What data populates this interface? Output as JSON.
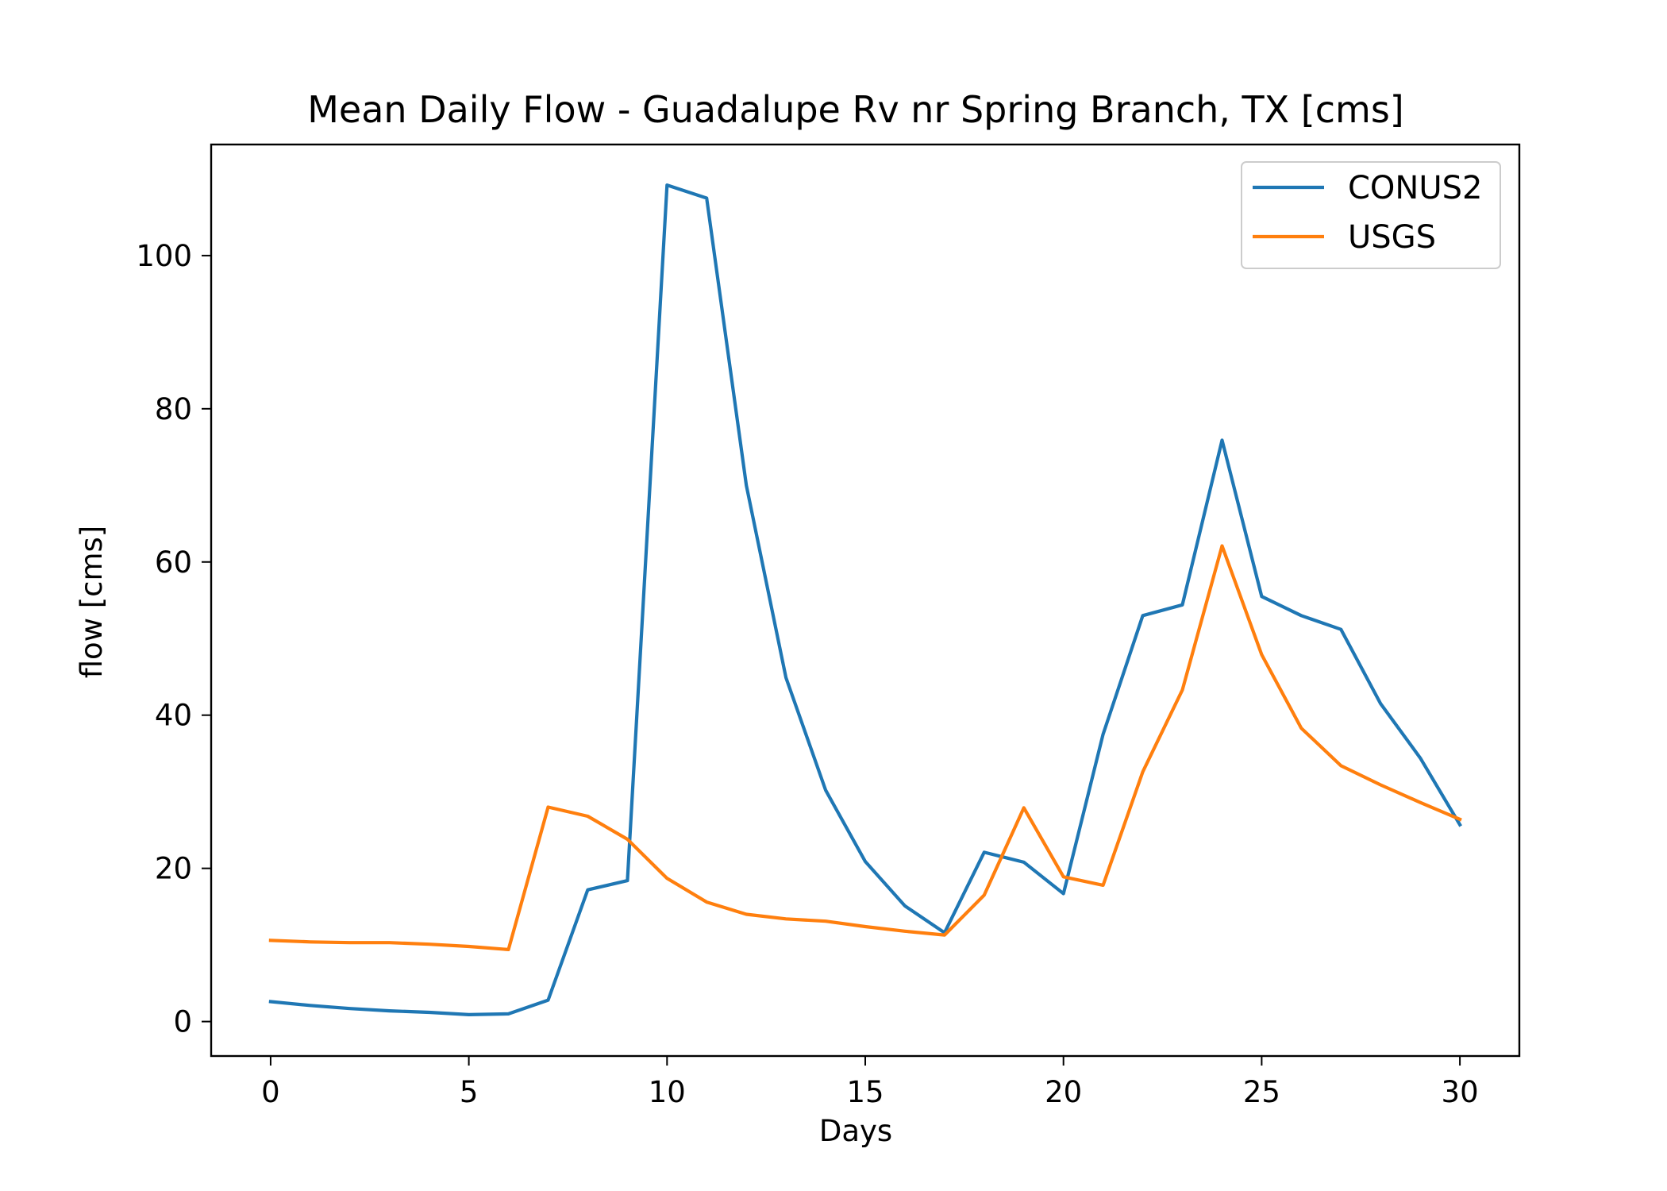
{
  "chart_data": {
    "type": "line",
    "title": "Mean Daily Flow - Guadalupe Rv nr Spring Branch, TX [cms]",
    "xlabel": "Days",
    "ylabel": "flow [cms]",
    "xlim": [
      -1.5,
      31.5
    ],
    "ylim": [
      -4.5,
      114.5
    ],
    "xticks": [
      0,
      5,
      10,
      15,
      20,
      25,
      30
    ],
    "yticks": [
      0,
      20,
      40,
      60,
      80,
      100
    ],
    "grid": false,
    "legend_position": "upper right",
    "x": [
      0,
      1,
      2,
      3,
      4,
      5,
      6,
      7,
      8,
      9,
      10,
      11,
      12,
      13,
      14,
      15,
      16,
      17,
      18,
      19,
      20,
      21,
      22,
      23,
      24,
      25,
      26,
      27,
      28,
      29,
      30
    ],
    "series": [
      {
        "name": "CONUS2",
        "color": "#1f77b4",
        "values": [
          2.6,
          2.1,
          1.7,
          1.4,
          1.2,
          0.9,
          1.0,
          2.8,
          17.2,
          18.4,
          109.2,
          107.5,
          70.0,
          44.9,
          30.2,
          20.9,
          15.1,
          11.6,
          22.1,
          20.8,
          16.7,
          37.5,
          53.0,
          54.4,
          75.9,
          55.5,
          53.0,
          51.2,
          41.5,
          34.4,
          25.7
        ]
      },
      {
        "name": "USGS",
        "color": "#ff7f0e",
        "values": [
          10.6,
          10.4,
          10.3,
          10.3,
          10.1,
          9.8,
          9.4,
          28.0,
          26.8,
          23.8,
          18.7,
          15.6,
          14.0,
          13.4,
          13.1,
          12.4,
          11.8,
          11.3,
          16.5,
          27.9,
          18.9,
          17.8,
          32.6,
          43.3,
          62.1,
          47.9,
          38.3,
          33.4,
          30.9,
          28.6,
          26.4
        ]
      }
    ]
  }
}
